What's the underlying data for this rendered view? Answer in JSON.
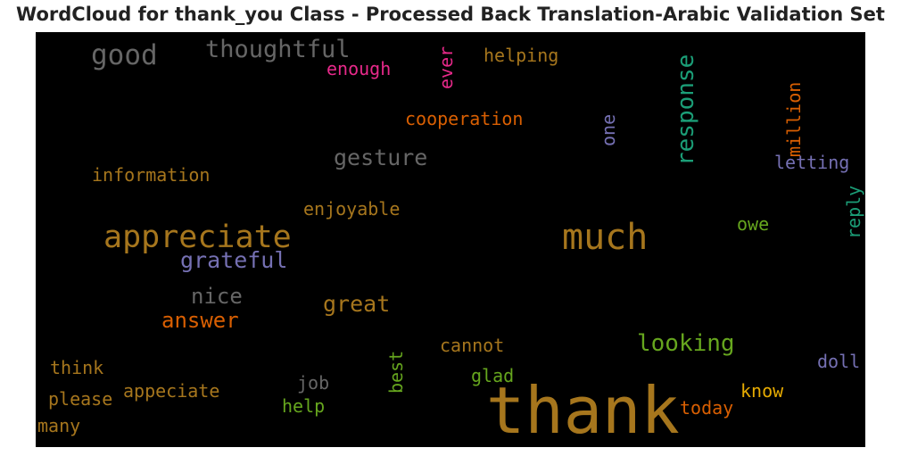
{
  "title": "WordCloud for thank_you Class - Processed Back Translation-Arabic Validation Set",
  "chart_data": {
    "type": "wordcloud",
    "background": "#000000",
    "words": [
      {
        "text": "thank",
        "color": "#a6761d",
        "rotate": false
      },
      {
        "text": "much",
        "color": "#a6761d",
        "rotate": false
      },
      {
        "text": "appreciate",
        "color": "#a6761d",
        "rotate": false
      },
      {
        "text": "good",
        "color": "#666666",
        "rotate": false
      },
      {
        "text": "thoughtful",
        "color": "#666666",
        "rotate": false
      },
      {
        "text": "response",
        "color": "#1b9e77",
        "rotate": true
      },
      {
        "text": "gesture",
        "color": "#666666",
        "rotate": false
      },
      {
        "text": "grateful",
        "color": "#7570b3",
        "rotate": false
      },
      {
        "text": "nice",
        "color": "#666666",
        "rotate": false
      },
      {
        "text": "answer",
        "color": "#d95f02",
        "rotate": false
      },
      {
        "text": "great",
        "color": "#a6761d",
        "rotate": false
      },
      {
        "text": "looking",
        "color": "#66a61e",
        "rotate": false
      },
      {
        "text": "enough",
        "color": "#e7298a",
        "rotate": false
      },
      {
        "text": "ever",
        "color": "#e7298a",
        "rotate": true
      },
      {
        "text": "helping",
        "color": "#a6761d",
        "rotate": false
      },
      {
        "text": "million",
        "color": "#d95f02",
        "rotate": true
      },
      {
        "text": "cooperation",
        "color": "#d95f02",
        "rotate": false
      },
      {
        "text": "one",
        "color": "#7570b3",
        "rotate": true
      },
      {
        "text": "letting",
        "color": "#7570b3",
        "rotate": false
      },
      {
        "text": "information",
        "color": "#a6761d",
        "rotate": false
      },
      {
        "text": "enjoyable",
        "color": "#a6761d",
        "rotate": false
      },
      {
        "text": "reply",
        "color": "#1b9e77",
        "rotate": true
      },
      {
        "text": "owe",
        "color": "#66a61e",
        "rotate": false
      },
      {
        "text": "cannot",
        "color": "#a6761d",
        "rotate": false
      },
      {
        "text": "think",
        "color": "#a6761d",
        "rotate": false
      },
      {
        "text": "doll",
        "color": "#7570b3",
        "rotate": false
      },
      {
        "text": "glad",
        "color": "#66a61e",
        "rotate": false
      },
      {
        "text": "best",
        "color": "#66a61e",
        "rotate": true
      },
      {
        "text": "job",
        "color": "#666666",
        "rotate": false
      },
      {
        "text": "appeciate",
        "color": "#a6761d",
        "rotate": false
      },
      {
        "text": "please",
        "color": "#a6761d",
        "rotate": false
      },
      {
        "text": "know",
        "color": "#e6ab02",
        "rotate": false
      },
      {
        "text": "help",
        "color": "#66a61e",
        "rotate": false
      },
      {
        "text": "today",
        "color": "#d95f02",
        "rotate": false
      },
      {
        "text": "many",
        "color": "#a6761d",
        "rotate": false
      }
    ]
  }
}
